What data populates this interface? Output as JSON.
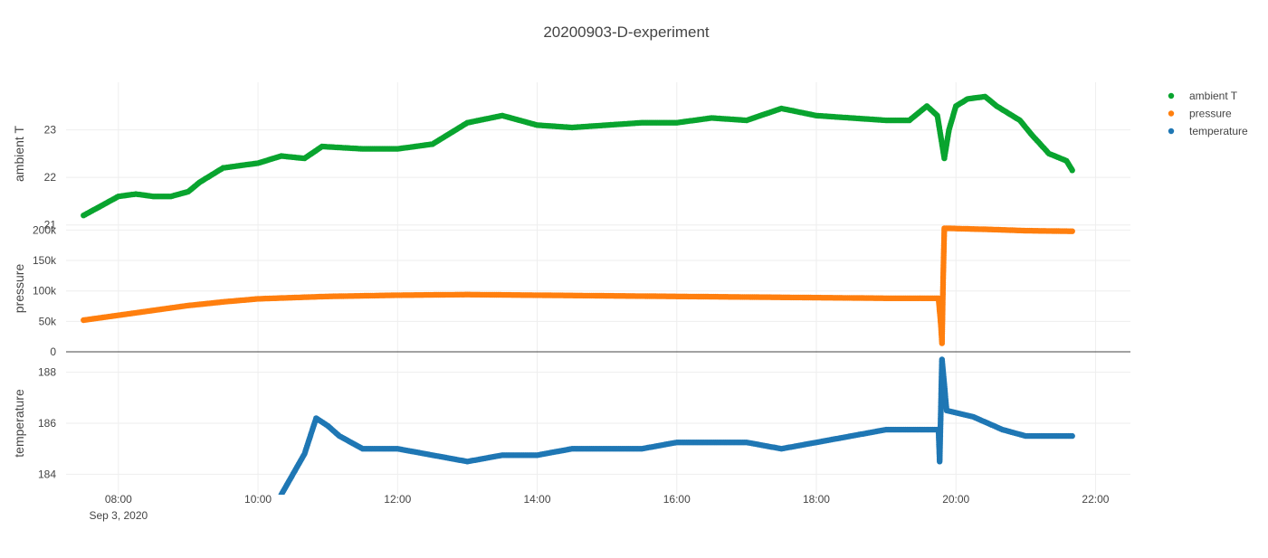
{
  "chart_data": {
    "type": "scatter",
    "title": "20200903-D-experiment",
    "x_axis": {
      "type": "date",
      "range": [
        "2020-09-03 07:15",
        "2020-09-03 22:30"
      ],
      "ticks": [
        {
          "value": "2020-09-03 08:00",
          "label": "08:00",
          "sublabel": "Sep 3, 2020"
        },
        {
          "value": "2020-09-03 10:00",
          "label": "10:00"
        },
        {
          "value": "2020-09-03 12:00",
          "label": "12:00"
        },
        {
          "value": "2020-09-03 14:00",
          "label": "14:00"
        },
        {
          "value": "2020-09-03 16:00",
          "label": "16:00"
        },
        {
          "value": "2020-09-03 18:00",
          "label": "18:00"
        },
        {
          "value": "2020-09-03 20:00",
          "label": "20:00"
        },
        {
          "value": "2020-09-03 22:00",
          "label": "22:00"
        }
      ]
    },
    "panels": [
      {
        "series": "ambient T",
        "ylabel": "ambient T",
        "ylim": [
          20.995,
          24.0
        ],
        "yticks": [
          {
            "value": 21,
            "label": "21"
          },
          {
            "value": 22,
            "label": "22"
          },
          {
            "value": 23,
            "label": "23"
          }
        ]
      },
      {
        "series": "pressure",
        "ylabel": "pressure",
        "ylim": [
          0,
          208000
        ],
        "zeroline": true,
        "yticks": [
          {
            "value": 0,
            "label": "0"
          },
          {
            "value": 50000,
            "label": "50k"
          },
          {
            "value": 100000,
            "label": "100k"
          },
          {
            "value": 150000,
            "label": "150k"
          },
          {
            "value": 200000,
            "label": "200k"
          }
        ]
      },
      {
        "series": "temperature",
        "ylabel": "temperature",
        "ylim": [
          183.2,
          188.8
        ],
        "yticks": [
          {
            "value": 184,
            "label": "184"
          },
          {
            "value": 186,
            "label": "186"
          },
          {
            "value": 188,
            "label": "188"
          }
        ]
      }
    ],
    "series": [
      {
        "name": "ambient T",
        "color": "#09a42f",
        "points": [
          [
            "2020-09-03 07:30",
            21.2
          ],
          [
            "2020-09-03 07:45",
            21.4
          ],
          [
            "2020-09-03 08:00",
            21.6
          ],
          [
            "2020-09-03 08:15",
            21.65
          ],
          [
            "2020-09-03 08:30",
            21.6
          ],
          [
            "2020-09-03 08:45",
            21.6
          ],
          [
            "2020-09-03 09:00",
            21.7
          ],
          [
            "2020-09-03 09:10",
            21.9
          ],
          [
            "2020-09-03 09:30",
            22.2
          ],
          [
            "2020-09-03 10:00",
            22.3
          ],
          [
            "2020-09-03 10:20",
            22.45
          ],
          [
            "2020-09-03 10:40",
            22.4
          ],
          [
            "2020-09-03 10:55",
            22.65
          ],
          [
            "2020-09-03 11:30",
            22.6
          ],
          [
            "2020-09-03 12:00",
            22.6
          ],
          [
            "2020-09-03 12:30",
            22.7
          ],
          [
            "2020-09-03 13:00",
            23.15
          ],
          [
            "2020-09-03 13:30",
            23.3
          ],
          [
            "2020-09-03 14:00",
            23.1
          ],
          [
            "2020-09-03 14:30",
            23.05
          ],
          [
            "2020-09-03 15:00",
            23.1
          ],
          [
            "2020-09-03 15:30",
            23.15
          ],
          [
            "2020-09-03 16:00",
            23.15
          ],
          [
            "2020-09-03 16:30",
            23.25
          ],
          [
            "2020-09-03 17:00",
            23.2
          ],
          [
            "2020-09-03 17:30",
            23.45
          ],
          [
            "2020-09-03 18:00",
            23.3
          ],
          [
            "2020-09-03 18:30",
            23.25
          ],
          [
            "2020-09-03 19:00",
            23.2
          ],
          [
            "2020-09-03 19:20",
            23.2
          ],
          [
            "2020-09-03 19:35",
            23.5
          ],
          [
            "2020-09-03 19:44",
            23.3
          ],
          [
            "2020-09-03 19:50",
            22.4
          ],
          [
            "2020-09-03 19:54",
            23.0
          ],
          [
            "2020-09-03 20:00",
            23.5
          ],
          [
            "2020-09-03 20:10",
            23.65
          ],
          [
            "2020-09-03 20:25",
            23.7
          ],
          [
            "2020-09-03 20:35",
            23.5
          ],
          [
            "2020-09-03 20:55",
            23.2
          ],
          [
            "2020-09-03 21:05",
            22.9
          ],
          [
            "2020-09-03 21:20",
            22.5
          ],
          [
            "2020-09-03 21:35",
            22.35
          ],
          [
            "2020-09-03 21:40",
            22.15
          ]
        ]
      },
      {
        "name": "pressure",
        "color": "#ff7f0e",
        "points": [
          [
            "2020-09-03 07:30",
            52000
          ],
          [
            "2020-09-03 08:00",
            60000
          ],
          [
            "2020-09-03 08:30",
            68000
          ],
          [
            "2020-09-03 09:00",
            76000
          ],
          [
            "2020-09-03 09:30",
            82000
          ],
          [
            "2020-09-03 10:00",
            87000
          ],
          [
            "2020-09-03 11:00",
            91000
          ],
          [
            "2020-09-03 12:00",
            93000
          ],
          [
            "2020-09-03 13:00",
            94000
          ],
          [
            "2020-09-03 14:00",
            93000
          ],
          [
            "2020-09-03 15:00",
            92000
          ],
          [
            "2020-09-03 16:00",
            91000
          ],
          [
            "2020-09-03 17:00",
            90000
          ],
          [
            "2020-09-03 18:00",
            89000
          ],
          [
            "2020-09-03 19:00",
            88000
          ],
          [
            "2020-09-03 19:45",
            88000
          ],
          [
            "2020-09-03 19:47",
            45000
          ],
          [
            "2020-09-03 19:48",
            14000
          ],
          [
            "2020-09-03 19:49",
            120000
          ],
          [
            "2020-09-03 19:50",
            203000
          ],
          [
            "2020-09-03 20:30",
            201000
          ],
          [
            "2020-09-03 21:00",
            199000
          ],
          [
            "2020-09-03 21:40",
            198000
          ]
        ]
      },
      {
        "name": "temperature",
        "color": "#1f77b4",
        "points": [
          [
            "2020-09-03 10:20",
            183.2
          ],
          [
            "2020-09-03 10:40",
            184.8
          ],
          [
            "2020-09-03 10:50",
            186.2
          ],
          [
            "2020-09-03 11:00",
            185.9
          ],
          [
            "2020-09-03 11:10",
            185.5
          ],
          [
            "2020-09-03 11:30",
            185.0
          ],
          [
            "2020-09-03 12:00",
            185.0
          ],
          [
            "2020-09-03 12:30",
            184.75
          ],
          [
            "2020-09-03 13:00",
            184.5
          ],
          [
            "2020-09-03 13:30",
            184.75
          ],
          [
            "2020-09-03 14:00",
            184.75
          ],
          [
            "2020-09-03 14:30",
            185.0
          ],
          [
            "2020-09-03 15:00",
            185.0
          ],
          [
            "2020-09-03 15:30",
            185.0
          ],
          [
            "2020-09-03 16:00",
            185.25
          ],
          [
            "2020-09-03 16:30",
            185.25
          ],
          [
            "2020-09-03 17:00",
            185.25
          ],
          [
            "2020-09-03 17:30",
            185.0
          ],
          [
            "2020-09-03 18:00",
            185.25
          ],
          [
            "2020-09-03 18:30",
            185.5
          ],
          [
            "2020-09-03 19:00",
            185.75
          ],
          [
            "2020-09-03 19:30",
            185.75
          ],
          [
            "2020-09-03 19:45",
            185.75
          ],
          [
            "2020-09-03 19:46",
            184.5
          ],
          [
            "2020-09-03 19:48",
            188.5
          ],
          [
            "2020-09-03 19:52",
            186.5
          ],
          [
            "2020-09-03 20:15",
            186.25
          ],
          [
            "2020-09-03 20:40",
            185.75
          ],
          [
            "2020-09-03 21:00",
            185.5
          ],
          [
            "2020-09-03 21:40",
            185.5
          ]
        ]
      }
    ],
    "legend": {
      "placement": "top-right",
      "entries": [
        "ambient T",
        "pressure",
        "temperature"
      ]
    },
    "grid": true
  }
}
